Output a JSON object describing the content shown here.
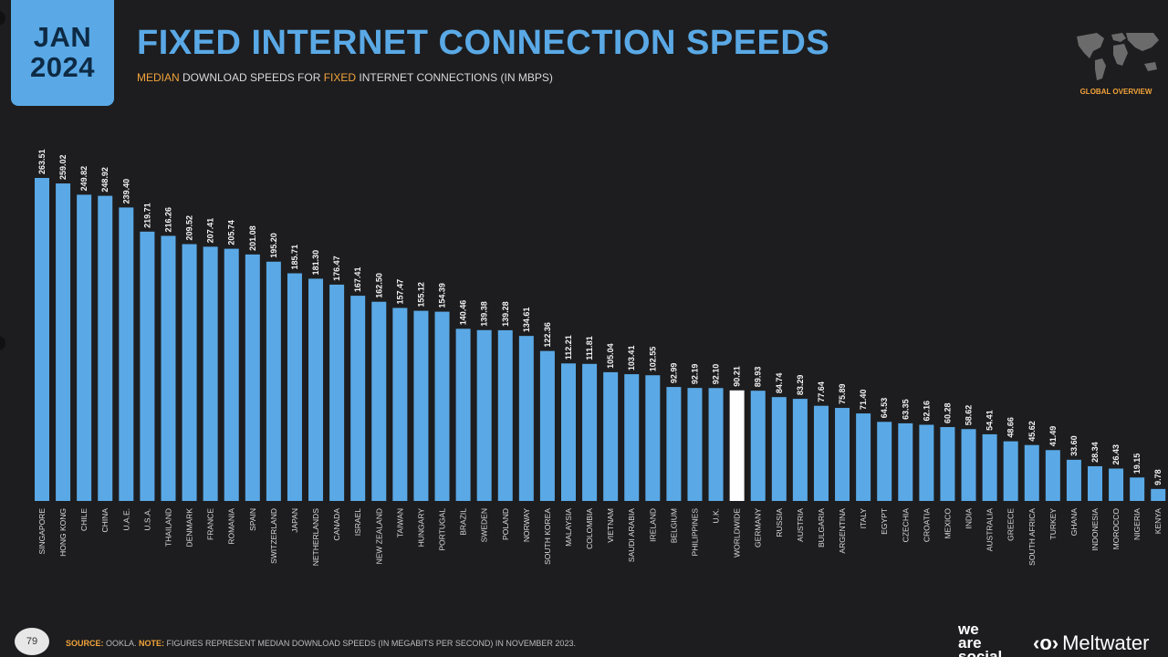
{
  "header": {
    "date_month": "JAN",
    "date_year": "2024",
    "title": "FIXED INTERNET CONNECTION SPEEDS",
    "subtitle_hl1": "MEDIAN",
    "subtitle_mid": " DOWNLOAD SPEEDS FOR ",
    "subtitle_hl2": "FIXED",
    "subtitle_end": " INTERNET CONNECTIONS (IN MBPS)",
    "overview_label": "GLOBAL OVERVIEW"
  },
  "colors": {
    "background": "#1d1d1f",
    "bar": "#5aa9e6",
    "highlight_bar": "#ffffff",
    "accent": "#f2a33a"
  },
  "chart_data": {
    "type": "bar",
    "categories": [
      "SINGAPORE",
      "HONG KONG",
      "CHILE",
      "CHINA",
      "U.A.E.",
      "U.S.A.",
      "THAILAND",
      "DENMARK",
      "FRANCE",
      "ROMANIA",
      "SPAIN",
      "SWITZERLAND",
      "JAPAN",
      "NETHERLANDS",
      "CANADA",
      "ISRAEL",
      "NEW ZEALAND",
      "TAIWAN",
      "HUNGARY",
      "PORTUGAL",
      "BRAZIL",
      "SWEDEN",
      "POLAND",
      "NORWAY",
      "SOUTH KOREA",
      "MALAYSIA",
      "COLOMBIA",
      "VIETNAM",
      "SAUDI ARABIA",
      "IRELAND",
      "BELGIUM",
      "PHILIPPINES",
      "U.K.",
      "WORLDWIDE",
      "GERMANY",
      "RUSSIA",
      "AUSTRIA",
      "BULGARIA",
      "ARGENTINA",
      "ITALY",
      "EGYPT",
      "CZECHIA",
      "CROATIA",
      "MEXICO",
      "INDIA",
      "AUSTRALIA",
      "GREECE",
      "SOUTH AFRICA",
      "TURKEY",
      "GHANA",
      "INDONESIA",
      "MOROCCO",
      "NIGERIA",
      "KENYA"
    ],
    "values": [
      263.51,
      259.02,
      249.82,
      248.92,
      239.4,
      219.71,
      216.26,
      209.52,
      207.41,
      205.74,
      201.08,
      195.2,
      185.71,
      181.3,
      176.47,
      167.41,
      162.5,
      157.47,
      155.12,
      154.39,
      140.46,
      139.38,
      139.28,
      134.61,
      122.36,
      112.21,
      111.81,
      105.04,
      103.41,
      102.55,
      92.99,
      92.19,
      92.1,
      90.21,
      89.93,
      84.74,
      83.29,
      77.64,
      75.89,
      71.4,
      64.53,
      63.35,
      62.16,
      60.28,
      58.62,
      54.41,
      48.66,
      45.62,
      41.49,
      33.6,
      28.34,
      26.43,
      19.15,
      9.78
    ],
    "labels": [
      "263.51",
      "259.02",
      "249.82",
      "248.92",
      "239.40",
      "219.71",
      "216.26",
      "209.52",
      "207.41",
      "205.74",
      "201.08",
      "195.20",
      "185.71",
      "181.30",
      "176.47",
      "167.41",
      "162.50",
      "157.47",
      "155.12",
      "154.39",
      "140.46",
      "139.38",
      "139.28",
      "134.61",
      "122.36",
      "112.21",
      "111.81",
      "105.04",
      "103.41",
      "102.55",
      "92.99",
      "92.19",
      "92.10",
      "90.21",
      "89.93",
      "84.74",
      "83.29",
      "77.64",
      "75.89",
      "71.40",
      "64.53",
      "63.35",
      "62.16",
      "60.28",
      "58.62",
      "54.41",
      "48.66",
      "45.62",
      "41.49",
      "33.60",
      "28.34",
      "26.43",
      "19.15",
      "9.78"
    ],
    "highlight": "WORLDWIDE",
    "ylim": [
      0,
      263.51
    ],
    "grid": false,
    "legend": "none"
  },
  "footer": {
    "page_number": "79",
    "source_key": "SOURCE:",
    "source_val": " OOKLA. ",
    "note_key": "NOTE:",
    "note_val": " FIGURES REPRESENT MEDIAN DOWNLOAD SPEEDS (IN MEGABITS PER SECOND) IN NOVEMBER 2023.",
    "logo_was": "we\nare\nsocial",
    "logo_meltwater": "Meltwater",
    "logo_melt_mark": "‹o›"
  }
}
